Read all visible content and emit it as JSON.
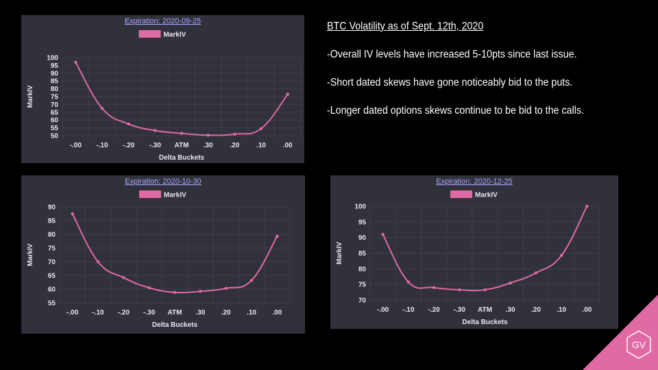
{
  "notes": {
    "title": "BTC Volatility as of Sept. 12th, 2020",
    "bullets": [
      "-Overall IV levels have increased 5-10pts since last issue.",
      "-Short dated skews have gone noticeably bid to the puts.",
      "-Longer dated options skews continue to be bid to the calls."
    ]
  },
  "logo": {
    "text": "GV",
    "color": "#e26aa4"
  },
  "colors": {
    "panel": "#31313b",
    "line": "#e26aa4",
    "grid": "#3f3f4a",
    "text": "#e8e8ee",
    "title": "#a9a9ff"
  },
  "chart_data": [
    {
      "type": "line",
      "title": "Expiration: 2020-09-25",
      "xlabel": "Delta Buckets",
      "ylabel": "MarkIV",
      "categories": [
        "-.00",
        "-.10",
        "-.20",
        "-.30",
        "ATM",
        ".30",
        ".20",
        ".10",
        ".00"
      ],
      "series": [
        {
          "name": "MarkIV",
          "values": [
            97,
            67.5,
            57.5,
            53.3,
            51.5,
            50.3,
            51,
            54.5,
            76.5
          ]
        }
      ],
      "ylim": [
        50,
        100
      ],
      "yticks": [
        50,
        55,
        60,
        65,
        70,
        75,
        80,
        85,
        90,
        95,
        100
      ],
      "grid": true,
      "legend": "top-center"
    },
    {
      "type": "line",
      "title": "Expiration: 2020-10-30",
      "xlabel": "Delta Buckets",
      "ylabel": "MarkIV",
      "categories": [
        "-.00",
        "-.10",
        "-.20",
        "-.30",
        "ATM",
        ".30",
        ".20",
        ".10",
        ".00"
      ],
      "series": [
        {
          "name": "MarkIV",
          "values": [
            87.5,
            70,
            64.2,
            60.5,
            58.8,
            59.2,
            60.3,
            63.2,
            79.3
          ]
        }
      ],
      "ylim": [
        55,
        90
      ],
      "yticks": [
        55,
        60,
        65,
        70,
        75,
        80,
        85,
        90
      ],
      "grid": true,
      "legend": "top-center"
    },
    {
      "type": "line",
      "title": "Expiration: 2020-12-25",
      "xlabel": "Delta Buckets",
      "ylabel": "MarkIV",
      "categories": [
        "-.00",
        "-.10",
        "-.20",
        "-.30",
        "ATM",
        ".30",
        ".20",
        ".10",
        ".00"
      ],
      "series": [
        {
          "name": "MarkIV",
          "values": [
            91,
            75.8,
            74,
            73.3,
            73.3,
            75.5,
            78.7,
            84.3,
            100
          ]
        }
      ],
      "ylim": [
        70,
        100
      ],
      "yticks": [
        70,
        75,
        80,
        85,
        90,
        95,
        100
      ],
      "grid": true,
      "legend": "top-center"
    }
  ]
}
